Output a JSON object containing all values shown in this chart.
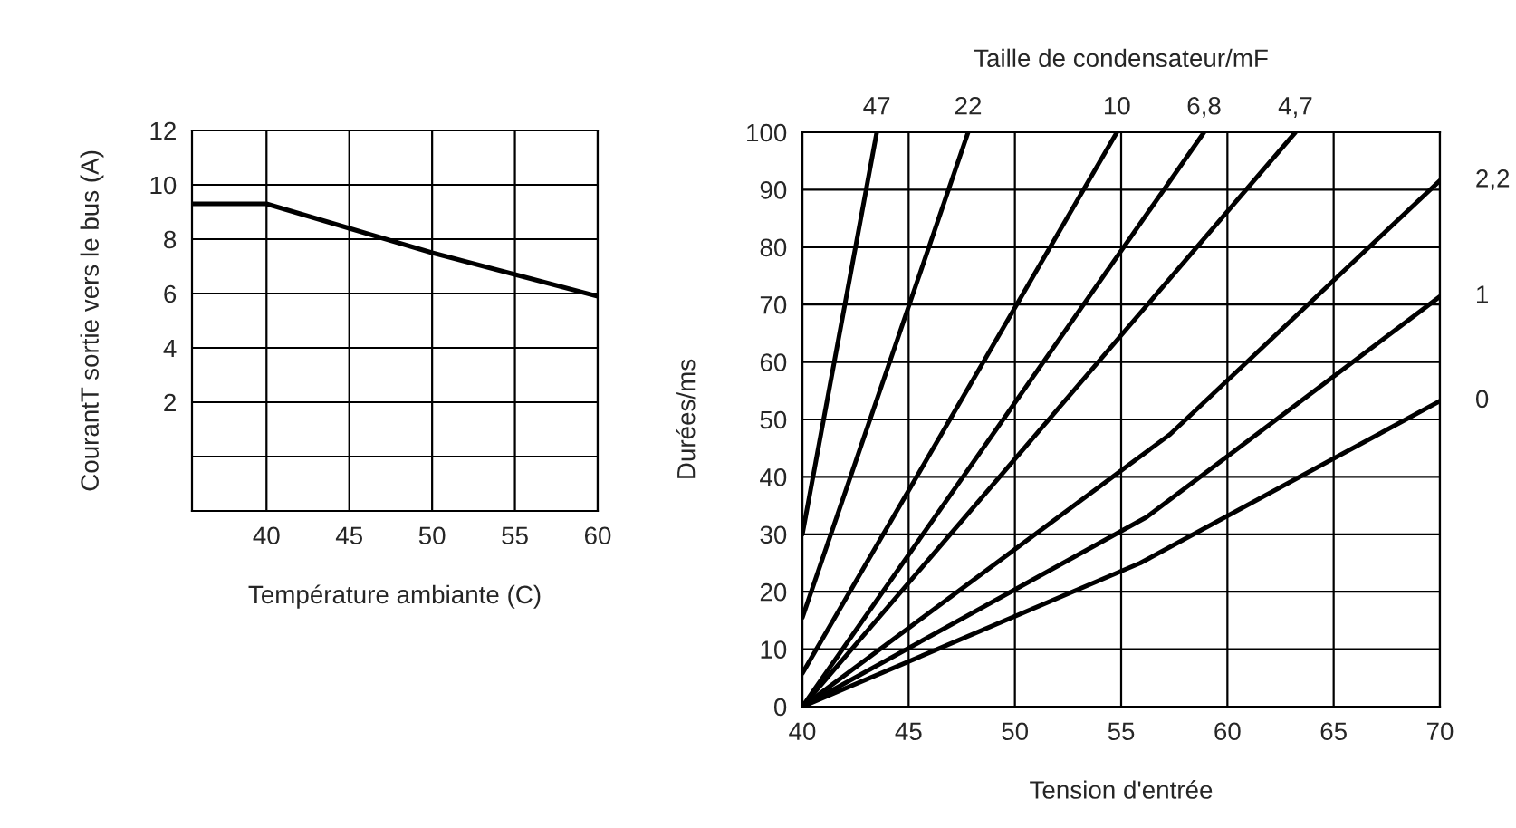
{
  "chart_data": [
    {
      "type": "line",
      "xlabel": "Température ambiante (C)",
      "ylabel": "CourantT sortie vers le bus (A)",
      "series": [
        {
          "color": "#000000",
          "x": [
            35.5,
            40,
            45,
            50,
            55,
            60
          ],
          "values": [
            9.3,
            9.3,
            8.4,
            7.5,
            6.7,
            5.9
          ]
        }
      ],
      "xlim": [
        35.5,
        60
      ],
      "xticks": [
        40,
        45,
        50,
        55,
        60
      ],
      "ylim": [
        -2,
        12
      ],
      "yticks": [
        {
          "value": 0,
          "label": null
        },
        2,
        4,
        6,
        8,
        10,
        12
      ],
      "grid": true,
      "legend": false
    },
    {
      "type": "line",
      "title": "Taille de condensateur/mF",
      "xlabel": "Tension d'entrée",
      "ylabel": "Durées/ms",
      "series": [
        {
          "name": "47",
          "color": "#000000",
          "x": [
            40,
            43.5
          ],
          "values": [
            30,
            100
          ]
        },
        {
          "name": "22",
          "color": "#000000",
          "x": [
            40,
            47.8
          ],
          "values": [
            15.5,
            100
          ]
        },
        {
          "name": "10",
          "color": "#000000",
          "x": [
            40,
            54.8
          ],
          "values": [
            5.8,
            100
          ]
        },
        {
          "name": "6,8",
          "color": "#000000",
          "x": [
            40,
            58.9
          ],
          "values": [
            0,
            100
          ]
        },
        {
          "name": "4,7",
          "color": "#000000",
          "x": [
            40,
            63.2
          ],
          "values": [
            0,
            100
          ]
        },
        {
          "name": "2,2",
          "color": "#000000",
          "x": [
            40,
            57.3,
            70
          ],
          "values": [
            0,
            47.4,
            91.6
          ]
        },
        {
          "name": "1",
          "color": "#000000",
          "x": [
            40,
            56.2,
            70
          ],
          "values": [
            0,
            33,
            71.4
          ]
        },
        {
          "name": "0",
          "color": "#000000",
          "x": [
            40,
            55.9,
            70
          ],
          "values": [
            0,
            25,
            53.2
          ]
        }
      ],
      "xlim": [
        40,
        70
      ],
      "xticks": [
        40,
        45,
        50,
        55,
        60,
        65,
        70
      ],
      "ylim": [
        0,
        100
      ],
      "yticks": [
        0,
        10,
        20,
        30,
        40,
        50,
        60,
        70,
        80,
        90,
        100
      ],
      "grid": true,
      "legend": false
    }
  ]
}
